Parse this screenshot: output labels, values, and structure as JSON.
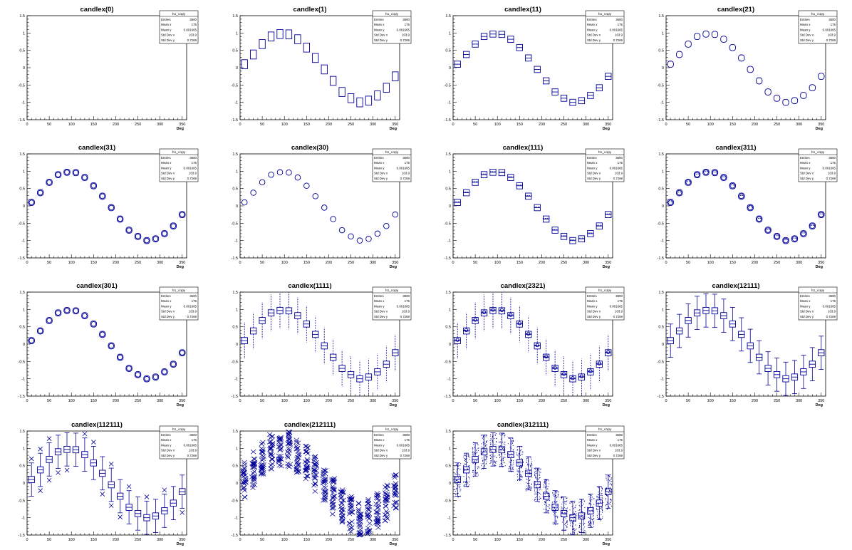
{
  "common": {
    "xlabel": "Deg",
    "xlim": [
      0,
      360
    ],
    "ylim": [
      -1.5,
      1.5
    ],
    "xticks": [
      "0",
      "50",
      "100",
      "150",
      "200",
      "250",
      "300",
      "350"
    ],
    "yticks": [
      "-1.5",
      "-1",
      "-0.5",
      "0",
      "0.5",
      "1",
      "1.5"
    ],
    "stats": {
      "name": "h1_copy",
      "rows": [
        {
          "label": "Entries",
          "value": "3600"
        },
        {
          "label": "Mean x",
          "value": "175"
        },
        {
          "label": "Mean y",
          "value": "0.001665"
        },
        {
          "label": "Std Dev x",
          "value": "103.9"
        },
        {
          "label": "Std Dev y",
          "value": "0.7269"
        }
      ]
    },
    "color": "#000099"
  },
  "chart_data": {
    "type": "box",
    "bin_centers": [
      10,
      30,
      50,
      70,
      90,
      110,
      130,
      150,
      170,
      190,
      210,
      230,
      250,
      270,
      290,
      310,
      330,
      350
    ],
    "median_values": [
      0.1,
      0.38,
      0.68,
      0.9,
      0.97,
      0.96,
      0.82,
      0.58,
      0.28,
      -0.05,
      -0.38,
      -0.7,
      -0.88,
      -1.0,
      -0.95,
      -0.8,
      -0.58,
      -0.25
    ],
    "panels": [
      {
        "title": "candlex(0)",
        "option": "0"
      },
      {
        "title": "candlex(1)",
        "option": "1"
      },
      {
        "title": "candlex(11)",
        "option": "11"
      },
      {
        "title": "candlex(21)",
        "option": "21"
      },
      {
        "title": "candlex(31)",
        "option": "31"
      },
      {
        "title": "candlex(30)",
        "option": "30"
      },
      {
        "title": "candlex(111)",
        "option": "111"
      },
      {
        "title": "candlex(311)",
        "option": "311"
      },
      {
        "title": "candlex(301)",
        "option": "301"
      },
      {
        "title": "candlex(1111)",
        "option": "1111"
      },
      {
        "title": "candlex(2321)",
        "option": "2321"
      },
      {
        "title": "candlex(12111)",
        "option": "12111"
      },
      {
        "title": "candlex(112111)",
        "option": "112111"
      },
      {
        "title": "candlex(212111)",
        "option": "212111"
      },
      {
        "title": "candlex(312111)",
        "option": "312111"
      }
    ]
  }
}
